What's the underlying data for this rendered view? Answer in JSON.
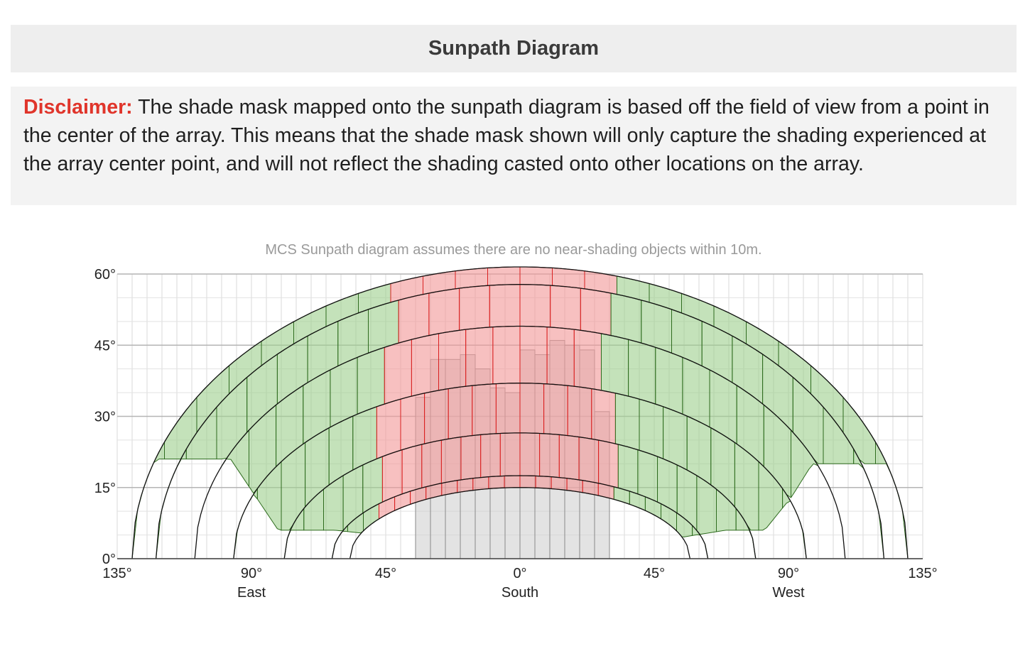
{
  "header": {
    "title": "Sunpath Diagram"
  },
  "disclaimer": {
    "lead": "Disclaimer:",
    "text": " The shade mask mapped onto the sunpath diagram is based off the field of view from a point in the center of the array. This means that the shade mask shown will only capture the shading experienced at the array center point, and will not reflect the shading casted onto other locations on the array."
  },
  "chart_data": {
    "type": "area",
    "subtitle": "MCS Sunpath diagram assumes there are no near-shading objects within 10m.",
    "x_ticks": [
      {
        "value": -135,
        "label": "135°",
        "sub": ""
      },
      {
        "value": -90,
        "label": "90°",
        "sub": "East"
      },
      {
        "value": -45,
        "label": "45°",
        "sub": ""
      },
      {
        "value": 0,
        "label": "0°",
        "sub": "South"
      },
      {
        "value": 45,
        "label": "45°",
        "sub": ""
      },
      {
        "value": 90,
        "label": "90°",
        "sub": "West"
      },
      {
        "value": 135,
        "label": "135°",
        "sub": ""
      }
    ],
    "y_ticks": [
      {
        "value": 0,
        "label": "0°"
      },
      {
        "value": 15,
        "label": "15°"
      },
      {
        "value": 30,
        "label": "30°"
      },
      {
        "value": 45,
        "label": "45°"
      },
      {
        "value": 60,
        "label": "60°"
      }
    ],
    "xlim": [
      -135,
      135
    ],
    "ylim": [
      0,
      60
    ],
    "minor_grid_step_deg": 5,
    "sun_paths": [
      {
        "peak": 61.5,
        "half_width": 130
      },
      {
        "peak": 57.8,
        "half_width": 122
      },
      {
        "peak": 49,
        "half_width": 109
      },
      {
        "peak": 37,
        "half_width": 96
      },
      {
        "peak": 26.5,
        "half_width": 79
      },
      {
        "peak": 17.5,
        "half_width": 63
      },
      {
        "peak": 15,
        "half_width": 57
      }
    ],
    "green_segments_per_band": 24,
    "red_zone_azimuth": [
      -45,
      30
    ],
    "green_lower_limit": [
      {
        "azimuth": -97,
        "elev": 21
      },
      {
        "azimuth": -81,
        "elev": 6
      },
      {
        "azimuth": -62,
        "elev": 6
      },
      {
        "azimuth": -47,
        "elev": 5
      },
      {
        "azimuth": -40,
        "elev": 8
      },
      {
        "azimuth": 35,
        "elev": 8
      },
      {
        "azimuth": 49,
        "elev": 4
      },
      {
        "azimuth": 69,
        "elev": 6
      },
      {
        "azimuth": 82,
        "elev": 6
      },
      {
        "azimuth": 91,
        "elev": 13
      },
      {
        "azimuth": 98,
        "elev": 20
      }
    ],
    "horizon_shading": {
      "azimuth_start": -35,
      "bin_width_deg": 5,
      "values": [
        34,
        42,
        42,
        43,
        40,
        36,
        35,
        44,
        43,
        46,
        45,
        44,
        31,
        0
      ]
    },
    "colors": {
      "clear_band": "#9fd08f",
      "clear_edge": "#2e6b1e",
      "shaded_band": "#f29a9a",
      "shaded_edge": "#d92020",
      "horizon_fill": "#cccccc",
      "horizon_edge": "#8a8a8a",
      "sun_path_line": "#111111"
    }
  }
}
